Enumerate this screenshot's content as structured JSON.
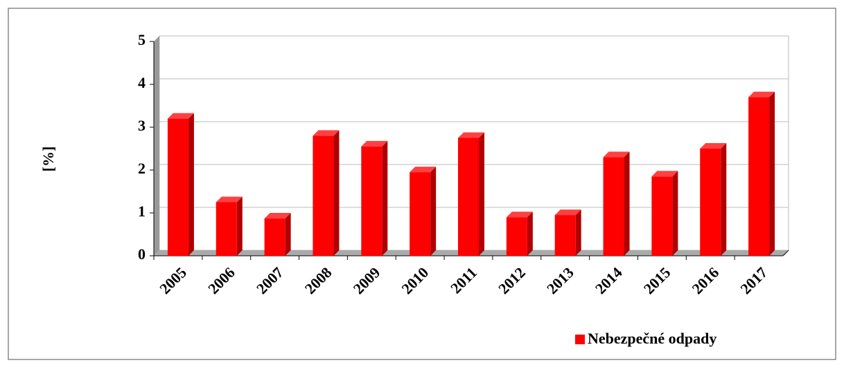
{
  "chart_data": {
    "type": "bar",
    "y_label": "[%]",
    "categories": [
      "2005",
      "2006",
      "2007",
      "2008",
      "2009",
      "2010",
      "2011",
      "2012",
      "2013",
      "2014",
      "2015",
      "2016",
      "2017"
    ],
    "series": [
      {
        "name": "Nebezpečné odpady",
        "color": "#ff0000",
        "values": [
          3.2,
          1.25,
          0.87,
          2.8,
          2.55,
          1.95,
          2.75,
          0.9,
          0.95,
          2.3,
          1.85,
          2.5,
          3.7
        ]
      }
    ],
    "ylim": [
      0,
      5
    ],
    "yticks": [
      0,
      1,
      2,
      3,
      4,
      5
    ],
    "grid": true,
    "legend": "bottom-right"
  }
}
